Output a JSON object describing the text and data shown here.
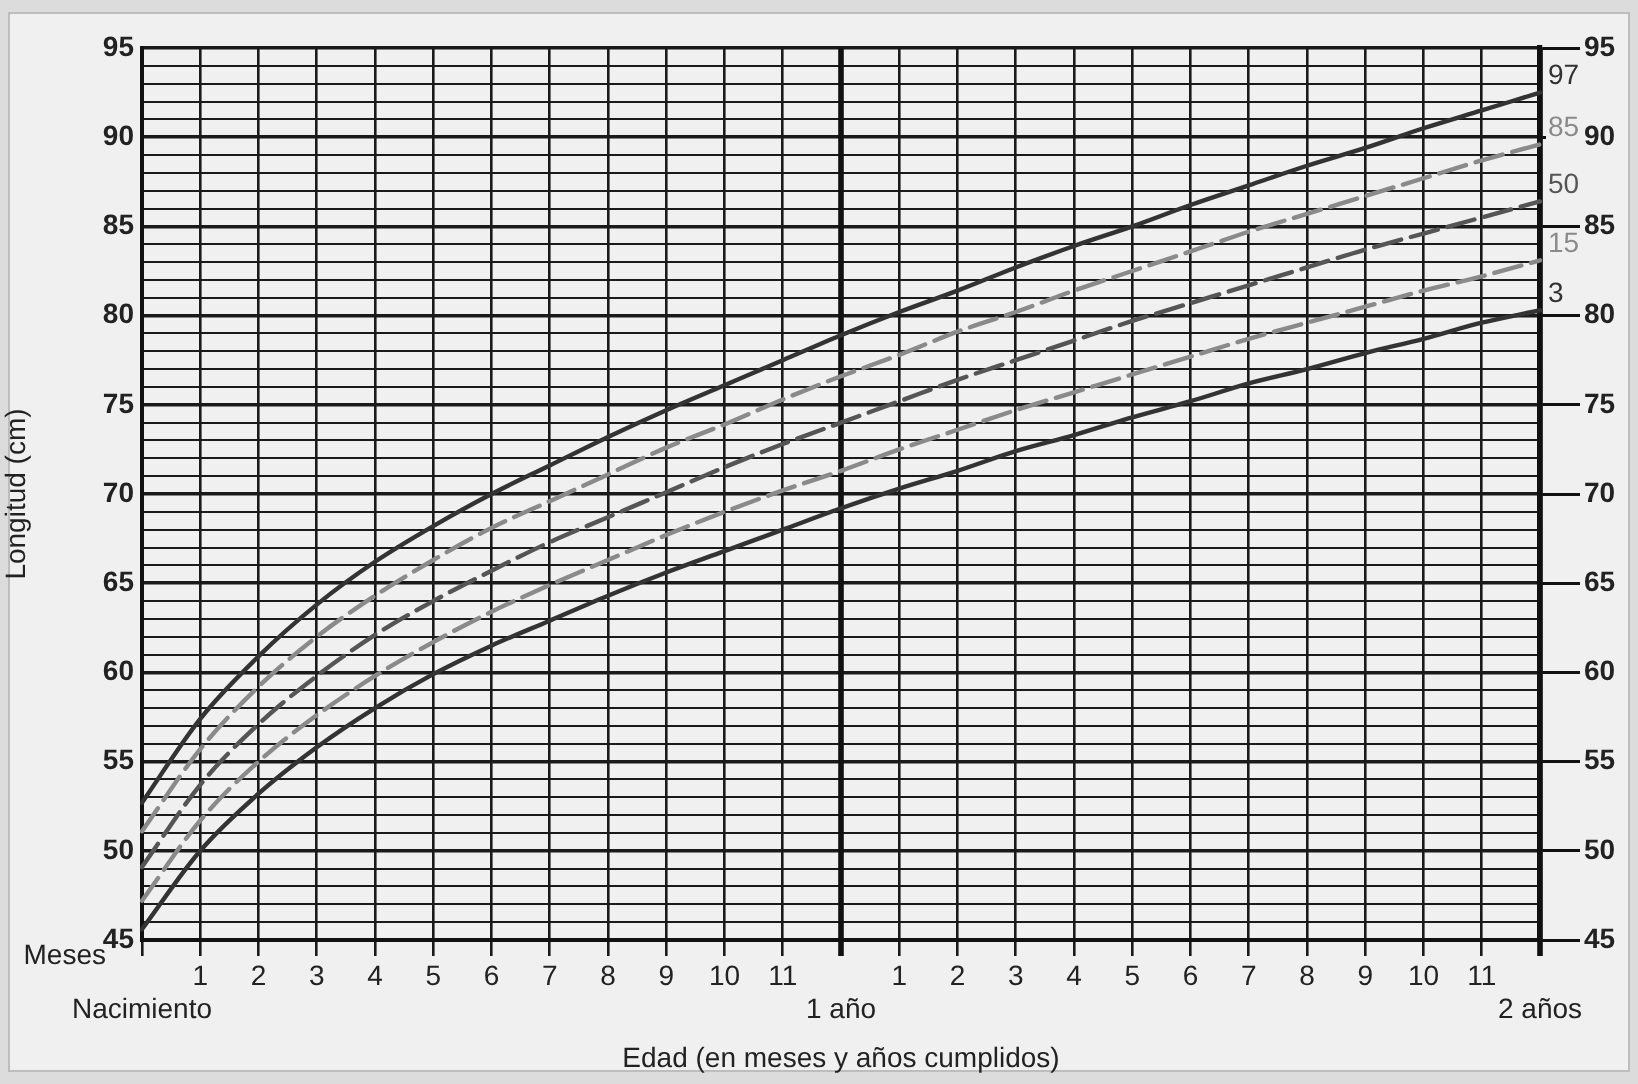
{
  "chart_data": {
    "type": "line",
    "xlabel": "Edad (en meses y años cumplidos)",
    "ylabel": "Longitud (cm)",
    "categories": [
      "Nacimiento",
      "1",
      "2",
      "3",
      "4",
      "5",
      "6",
      "7",
      "8",
      "9",
      "10",
      "11",
      "1 año",
      "1",
      "2",
      "3",
      "4",
      "5",
      "6",
      "7",
      "8",
      "9",
      "10",
      "11",
      "2 años"
    ],
    "series": [
      {
        "name": "97",
        "color": "#333333",
        "line_style": "solid",
        "values": [
          52.7,
          57.4,
          60.9,
          63.8,
          66.2,
          68.2,
          70.0,
          71.6,
          73.2,
          74.7,
          76.1,
          77.5,
          78.9,
          80.2,
          81.4,
          82.7,
          83.9,
          85.0,
          86.2,
          87.3,
          88.4,
          89.4,
          90.5,
          91.5,
          92.5
        ]
      },
      {
        "name": "85",
        "color": "#8a8a8a",
        "line_style": "dashed",
        "values": [
          51.1,
          55.7,
          59.2,
          62.0,
          64.3,
          66.3,
          68.1,
          69.6,
          71.1,
          72.6,
          73.9,
          75.3,
          76.6,
          77.8,
          79.1,
          80.2,
          81.4,
          82.5,
          83.6,
          84.7,
          85.7,
          86.7,
          87.7,
          88.7,
          89.6
        ]
      },
      {
        "name": "50",
        "color": "#555555",
        "line_style": "dashed",
        "values": [
          49.1,
          53.7,
          57.1,
          59.8,
          62.1,
          64.0,
          65.7,
          67.3,
          68.7,
          70.1,
          71.5,
          72.8,
          74.0,
          75.2,
          76.4,
          77.5,
          78.6,
          79.7,
          80.7,
          81.7,
          82.7,
          83.7,
          84.6,
          85.5,
          86.4
        ]
      },
      {
        "name": "15",
        "color": "#8a8a8a",
        "line_style": "dashed",
        "values": [
          47.2,
          51.7,
          55.0,
          57.6,
          59.8,
          61.7,
          63.4,
          64.9,
          66.3,
          67.7,
          69.0,
          70.2,
          71.3,
          72.5,
          73.6,
          74.7,
          75.7,
          76.7,
          77.7,
          78.7,
          79.6,
          80.5,
          81.4,
          82.2,
          83.1
        ]
      },
      {
        "name": "3",
        "color": "#333333",
        "line_style": "solid",
        "values": [
          45.6,
          50.0,
          53.2,
          55.8,
          58.0,
          59.9,
          61.5,
          62.9,
          64.3,
          65.6,
          66.8,
          68.0,
          69.2,
          70.3,
          71.3,
          72.4,
          73.3,
          74.3,
          75.2,
          76.2,
          77.0,
          77.9,
          78.7,
          79.6,
          80.3
        ]
      }
    ],
    "ylim": [
      45,
      95
    ],
    "yticks": [
      45,
      {
        "value": 46,
        "label": null
      },
      {
        "value": 47,
        "label": null
      },
      {
        "value": 48,
        "label": null
      },
      {
        "value": 49,
        "label": null
      },
      50,
      {
        "value": 51,
        "label": null
      },
      {
        "value": 52,
        "label": null
      },
      {
        "value": 53,
        "label": null
      },
      {
        "value": 54,
        "label": null
      },
      55,
      {
        "value": 56,
        "label": null
      },
      {
        "value": 57,
        "label": null
      },
      {
        "value": 58,
        "label": null
      },
      {
        "value": 59,
        "label": null
      },
      60,
      {
        "value": 61,
        "label": null
      },
      {
        "value": 62,
        "label": null
      },
      {
        "value": 63,
        "label": null
      },
      {
        "value": 64,
        "label": null
      },
      65,
      {
        "value": 66,
        "label": null
      },
      {
        "value": 67,
        "label": null
      },
      {
        "value": 68,
        "label": null
      },
      {
        "value": 69,
        "label": null
      },
      70,
      {
        "value": 71,
        "label": null
      },
      {
        "value": 72,
        "label": null
      },
      {
        "value": 73,
        "label": null
      },
      {
        "value": 74,
        "label": null
      },
      75,
      {
        "value": 76,
        "label": null
      },
      {
        "value": 77,
        "label": null
      },
      {
        "value": 78,
        "label": null
      },
      {
        "value": 79,
        "label": null
      },
      80,
      {
        "value": 81,
        "label": null
      },
      {
        "value": 82,
        "label": null
      },
      {
        "value": 83,
        "label": null
      },
      {
        "value": 84,
        "label": null
      },
      85,
      {
        "value": 86,
        "label": null
      },
      {
        "value": 87,
        "label": null
      },
      {
        "value": 88,
        "label": null
      },
      {
        "value": 89,
        "label": null
      },
      90,
      {
        "value": 91,
        "label": null
      },
      {
        "value": 92,
        "label": null
      },
      {
        "value": 93,
        "label": null
      },
      {
        "value": 94,
        "label": null
      },
      95
    ],
    "y2lim": [
      45,
      95
    ],
    "y2ticks": [
      45,
      50,
      55,
      60,
      65,
      70,
      75,
      80,
      85,
      90,
      95
    ],
    "ref_lines": [
      {
        "axis": "x",
        "value": "1 año",
        "color": "#111111"
      },
      {
        "axis": "x",
        "value": "2 años",
        "color": "#111111"
      }
    ],
    "grid": true,
    "legend": false,
    "marker": "none",
    "annotations": [
      "Meses"
    ]
  }
}
